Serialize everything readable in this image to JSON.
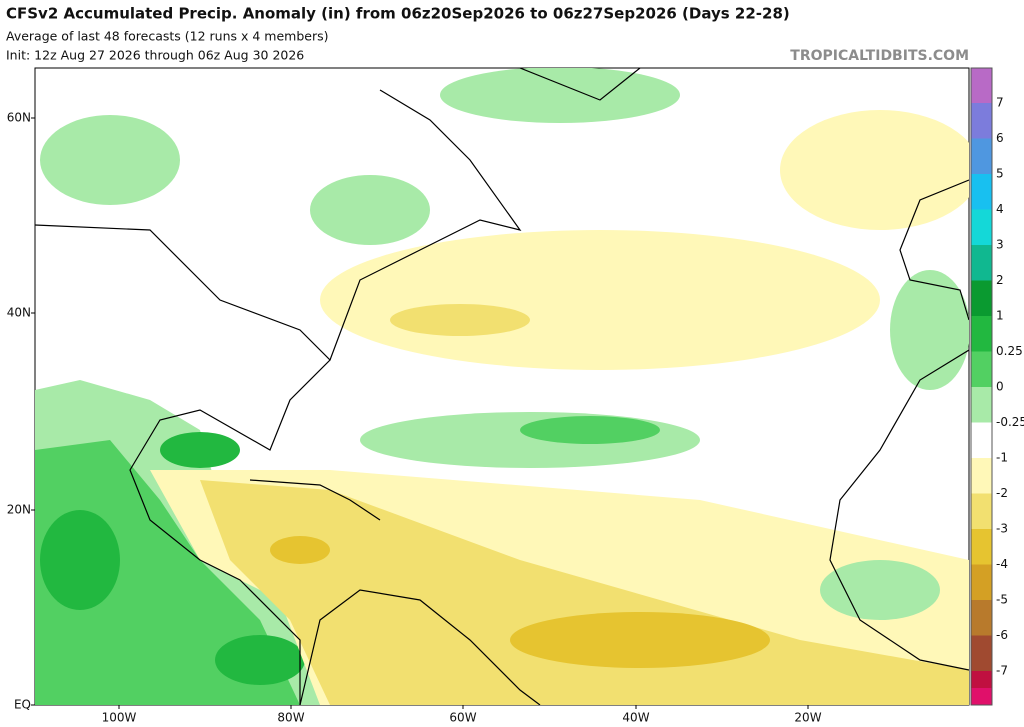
{
  "header": {
    "title": "CFSv2 Accumulated Precip. Anomaly (in) from 06z20Sep2026 to 06z27Sep2026 (Days 22-28)",
    "subtitle": "Average of last 48 forecasts (12 runs x 4 members)",
    "init": "Init: 12z Aug 27 2026 through 06z Aug 30 2026",
    "watermark": "TROPICALTIDBITS.COM"
  },
  "map": {
    "lat_labels": [
      "60N",
      "40N",
      "20N",
      "EQ"
    ],
    "lon_labels": [
      "100W",
      "80W",
      "60W",
      "40W",
      "20W"
    ]
  },
  "colorbar": {
    "labels": [
      "7",
      "6",
      "5",
      "4",
      "3",
      "2",
      "1",
      "0.25",
      "0",
      "-0.25",
      "-1",
      "-2",
      "-3",
      "-4",
      "-5",
      "-6",
      "-7"
    ],
    "colors": [
      "#b86ac6",
      "#7c7cdc",
      "#4f97e0",
      "#18c0f0",
      "#14d8d8",
      "#10b890",
      "#0a9a30",
      "#22b840",
      "#52d062",
      "#a8eaa8",
      "#ffffff",
      "#fff8b8",
      "#f2e070",
      "#e6c430",
      "#d4a024",
      "#b87a2c",
      "#a04a30",
      "#c01040",
      "#e0106a"
    ]
  }
}
